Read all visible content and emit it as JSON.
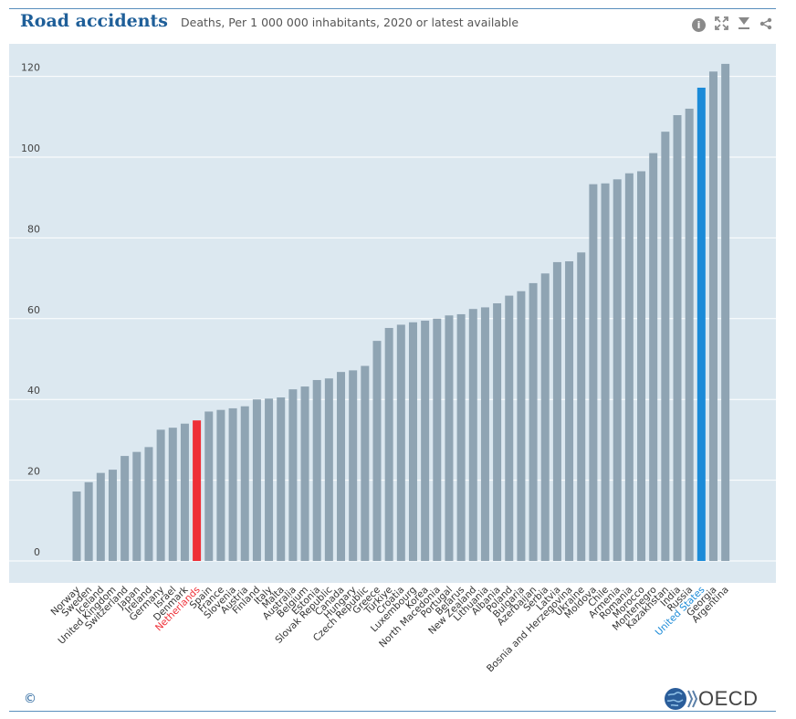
{
  "header": {
    "title": "Road accidents",
    "subtitle": "Deaths, Per 1 000 000 inhabitants, 2020 or latest available"
  },
  "toolbar": {
    "info_icon": "info-icon",
    "expand_icon": "expand-icon",
    "download_icon": "download-icon",
    "share_icon": "share-icon"
  },
  "footer": {
    "copyright": "©",
    "brand": "OECD"
  },
  "colors": {
    "plot_bg": "#dce8f0",
    "bar": "#8fa4b3",
    "highlight_netherlands": "#ee2f37",
    "highlight_us": "#1b8bd8",
    "grid": "#ffffff",
    "title": "#1f5f99"
  },
  "chart_data": {
    "type": "bar",
    "title": "Road accidents",
    "subtitle": "Deaths, Per 1 000 000 inhabitants, 2020 or latest available",
    "xlabel": "",
    "ylabel": "",
    "ylim": [
      0,
      125
    ],
    "yticks": [
      0,
      20,
      40,
      60,
      80,
      100,
      120
    ],
    "grid": true,
    "categories": [
      "Norway",
      "Sweden",
      "Iceland",
      "United Kingdom",
      "Switzerland",
      "Japan",
      "Ireland",
      "Germany",
      "Israel",
      "Denmark",
      "Netherlands",
      "Spain",
      "France",
      "Slovenia",
      "Austria",
      "Finland",
      "Italy",
      "Malta",
      "Australia",
      "Belgium",
      "Estonia",
      "Slovak Republic",
      "Canada",
      "Hungary",
      "Czech Republic",
      "Greece",
      "Türkiye",
      "Croatia",
      "Luxembourg",
      "Korea",
      "North Macedonia",
      "Portugal",
      "Belarus",
      "New Zealand",
      "Lithuania",
      "Albania",
      "Poland",
      "Bulgaria",
      "Azerbaijan",
      "Serbia",
      "Latvia",
      "Bosnia and Herzegovina",
      "Ukraine",
      "Moldova",
      "Chile",
      "Armenia",
      "Romania",
      "Morocco",
      "Montenegro",
      "Kazakhstan",
      "India",
      "Russia",
      "United States",
      "Georgia",
      "Argentina"
    ],
    "values": [
      17.2,
      19.5,
      21.8,
      22.6,
      26.0,
      27.0,
      28.2,
      32.5,
      33.0,
      34.0,
      34.8,
      37.0,
      37.4,
      37.8,
      38.3,
      40.0,
      40.2,
      40.5,
      42.5,
      43.2,
      44.8,
      45.2,
      46.8,
      47.2,
      48.3,
      54.5,
      57.7,
      58.5,
      59.1,
      59.5,
      60.0,
      60.8,
      61.1,
      62.4,
      62.8,
      63.8,
      65.7,
      66.8,
      68.8,
      71.2,
      74.0,
      74.2,
      76.4,
      93.3,
      93.5,
      94.5,
      96.0,
      96.5,
      101.0,
      106.3,
      110.4,
      112.0,
      117.2,
      121.2,
      123.1
    ],
    "highlights": {
      "Netherlands": "#ee2f37",
      "United States": "#1b8bd8"
    }
  }
}
